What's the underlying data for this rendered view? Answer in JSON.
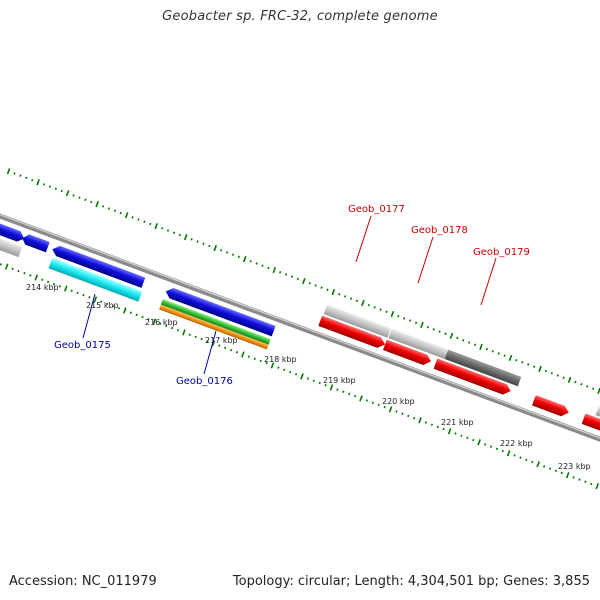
{
  "title": "Geobacter sp. FRC-32, complete genome",
  "footer": {
    "accession": "Accession: NC_011979",
    "summary": "Topology: circular; Length: 4,304,501 bp; Genes: 3,855"
  },
  "colors": {
    "forward_feature": "#ee0000",
    "reverse_feature": "#1010dd",
    "cyan_feature": "#18e8f0",
    "green_feature": "#33bb33",
    "orange_feature": "#f09010",
    "gray_light": "#c4c4c4",
    "gray_dark": "#6a6a6a",
    "label_blue": "#0000aa",
    "label_red": "#cc0000",
    "tick_green": "#007700",
    "backbone": "#888888"
  },
  "scale_labels": [
    "214 kbp",
    "215 kbp",
    "216 kbp",
    "217 kbp",
    "218 kbp",
    "219 kbp",
    "220 kbp",
    "221 kbp",
    "222 kbp",
    "223 kbp"
  ],
  "gene_labels": {
    "g175": "Geob_0175",
    "g176": "Geob_0176",
    "g177": "Geob_0177",
    "g178": "Geob_0178",
    "g179": "Geob_0179"
  }
}
